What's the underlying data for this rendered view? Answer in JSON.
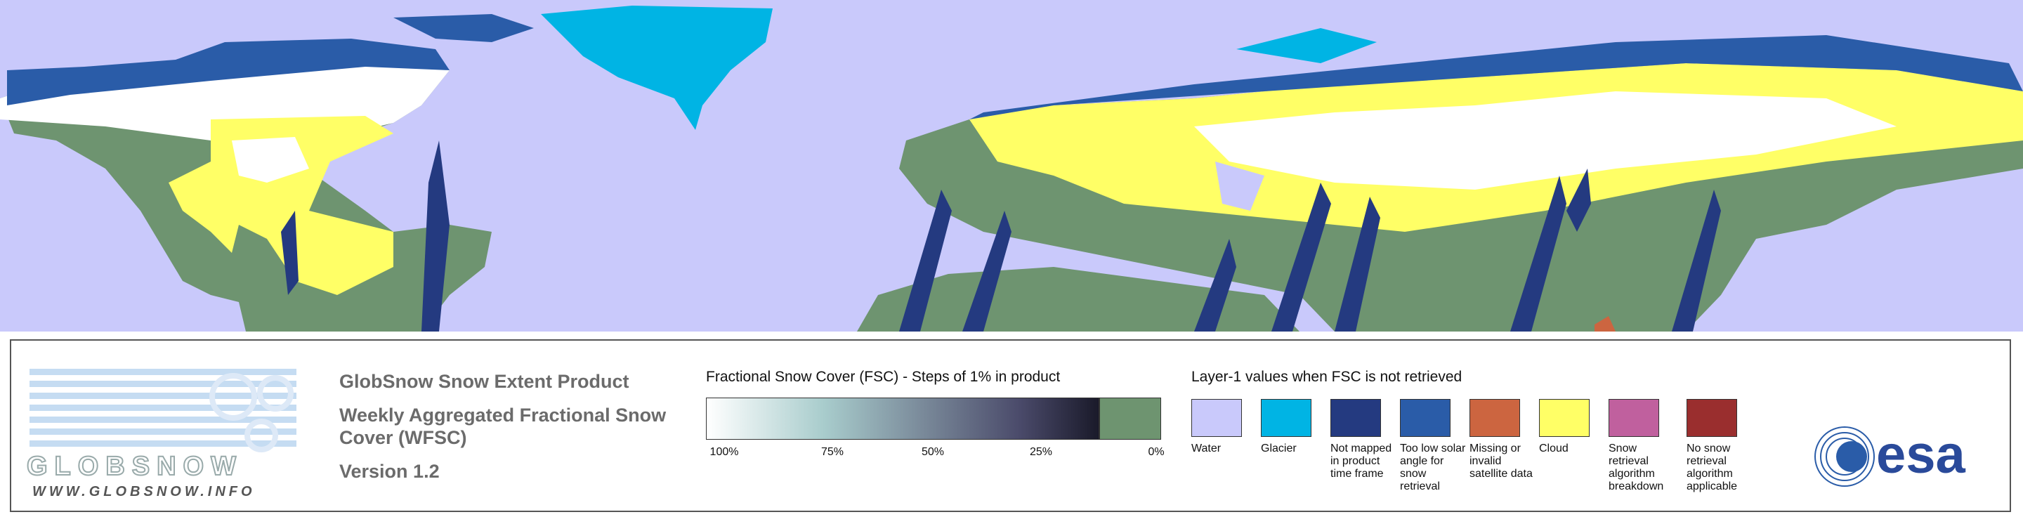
{
  "logo": {
    "wordmark": "GLOBSNOW",
    "url": "WWW.GLOBSNOW.INFO"
  },
  "product": {
    "title": "GlobSnow Snow Extent Product",
    "subtitle": "Weekly Aggregated Fractional Snow Cover (WFSC)",
    "version": "Version 1.2"
  },
  "fsc_legend": {
    "title": "Fractional Snow Cover (FSC) - Steps of 1% in product",
    "ticks": [
      "100%",
      "75%",
      "50%",
      "25%",
      "0%"
    ]
  },
  "layer1_legend": {
    "title": "Layer-1 values when FSC is not retrieved",
    "items": [
      {
        "label": "Water",
        "color": "#c9c9fb"
      },
      {
        "label": "Glacier",
        "color": "#00b4e4"
      },
      {
        "label": "Not mapped in product time frame",
        "color": "#243a80"
      },
      {
        "label": "Too low solar angle for snow retrieval",
        "color": "#2a5ca8"
      },
      {
        "label": "Missing or invalid satellite data",
        "color": "#cc6540"
      },
      {
        "label": "Cloud",
        "color": "#ffff66"
      },
      {
        "label": "Snow retrieval algorithm breakdown",
        "color": "#c0609e"
      },
      {
        "label": "No snow retrieval algorithm applicable",
        "color": "#9a2e2e"
      }
    ]
  },
  "esa_logo": "esa"
}
